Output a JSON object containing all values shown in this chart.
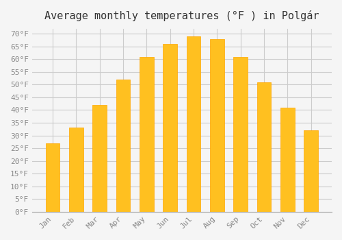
{
  "title": "Average monthly temperatures (°F ) in Polgár",
  "months": [
    "Jan",
    "Feb",
    "Mar",
    "Apr",
    "May",
    "Jun",
    "Jul",
    "Aug",
    "Sep",
    "Oct",
    "Nov",
    "Dec"
  ],
  "values": [
    27,
    33,
    42,
    52,
    61,
    66,
    69,
    68,
    61,
    51,
    41,
    32
  ],
  "bar_color": "#FFC020",
  "bar_edge_color": "#FFA500",
  "background_color": "#F5F5F5",
  "grid_color": "#CCCCCC",
  "text_color": "#888888",
  "ylim": [
    0,
    72
  ],
  "yticks": [
    0,
    5,
    10,
    15,
    20,
    25,
    30,
    35,
    40,
    45,
    50,
    55,
    60,
    65,
    70
  ],
  "title_fontsize": 11,
  "tick_fontsize": 8
}
